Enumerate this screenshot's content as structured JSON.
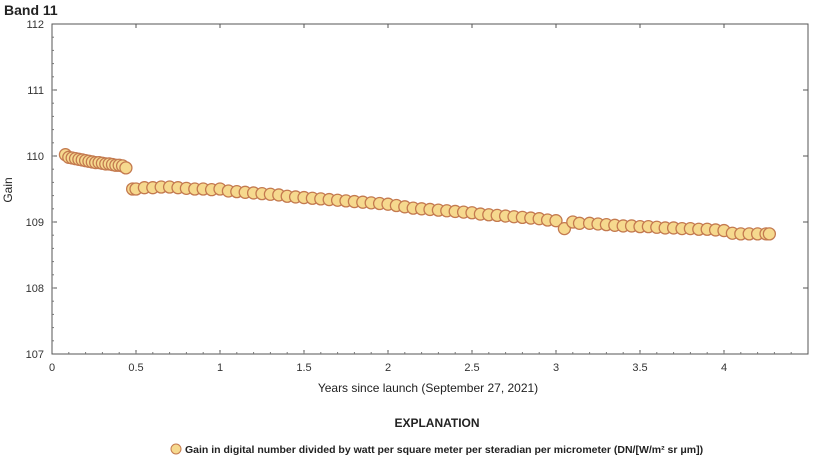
{
  "chart_data": {
    "type": "scatter",
    "title": "Band 11",
    "xlabel": "Years since launch (September 27, 2021)",
    "ylabel": "Gain",
    "xlim": [
      0,
      4.5
    ],
    "ylim": [
      107,
      112
    ],
    "x_ticks": [
      "0",
      "0.5",
      "1",
      "1.5",
      "2",
      "2.5",
      "3",
      "3.5",
      "4"
    ],
    "y_ticks": [
      "107",
      "108",
      "109",
      "110",
      "111",
      "112"
    ],
    "grid": false,
    "explanation_title": "EXPLANATION",
    "series": [
      {
        "name": "Gain in digital number divided by watt per square meter per steradian per micrometer (DN/[W/m² sr μm])",
        "marker_fill": "#f6d98e",
        "marker_stroke": "#c47a4f",
        "x": [
          0.08,
          0.1,
          0.12,
          0.14,
          0.16,
          0.18,
          0.2,
          0.22,
          0.24,
          0.26,
          0.28,
          0.3,
          0.32,
          0.34,
          0.36,
          0.38,
          0.4,
          0.42,
          0.44,
          0.48,
          0.5,
          0.55,
          0.6,
          0.65,
          0.7,
          0.75,
          0.8,
          0.85,
          0.9,
          0.95,
          1.0,
          1.05,
          1.1,
          1.15,
          1.2,
          1.25,
          1.3,
          1.35,
          1.4,
          1.45,
          1.5,
          1.55,
          1.6,
          1.65,
          1.7,
          1.75,
          1.8,
          1.85,
          1.9,
          1.95,
          2.0,
          2.05,
          2.1,
          2.15,
          2.2,
          2.25,
          2.3,
          2.35,
          2.4,
          2.45,
          2.5,
          2.55,
          2.6,
          2.65,
          2.7,
          2.75,
          2.8,
          2.85,
          2.9,
          2.95,
          3.0,
          3.05,
          3.1,
          3.14,
          3.2,
          3.25,
          3.3,
          3.35,
          3.4,
          3.45,
          3.5,
          3.55,
          3.6,
          3.65,
          3.7,
          3.75,
          3.8,
          3.85,
          3.9,
          3.95,
          4.0,
          4.05,
          4.1,
          4.15,
          4.2,
          4.25,
          4.27
        ],
        "y": [
          110.02,
          109.98,
          109.97,
          109.96,
          109.95,
          109.94,
          109.93,
          109.92,
          109.91,
          109.9,
          109.9,
          109.89,
          109.88,
          109.88,
          109.87,
          109.86,
          109.86,
          109.85,
          109.82,
          109.5,
          109.5,
          109.52,
          109.52,
          109.53,
          109.53,
          109.52,
          109.51,
          109.5,
          109.5,
          109.49,
          109.5,
          109.47,
          109.46,
          109.45,
          109.44,
          109.43,
          109.42,
          109.41,
          109.39,
          109.38,
          109.37,
          109.36,
          109.35,
          109.34,
          109.33,
          109.32,
          109.31,
          109.3,
          109.29,
          109.28,
          109.27,
          109.25,
          109.23,
          109.21,
          109.2,
          109.19,
          109.18,
          109.17,
          109.16,
          109.15,
          109.14,
          109.12,
          109.11,
          109.1,
          109.09,
          109.08,
          109.07,
          109.06,
          109.05,
          109.03,
          109.02,
          108.9,
          109.0,
          108.98,
          108.98,
          108.97,
          108.96,
          108.95,
          108.94,
          108.94,
          108.93,
          108.93,
          108.92,
          108.91,
          108.91,
          108.9,
          108.9,
          108.89,
          108.89,
          108.88,
          108.87,
          108.83,
          108.82,
          108.82,
          108.82,
          108.82,
          108.82
        ]
      }
    ]
  }
}
